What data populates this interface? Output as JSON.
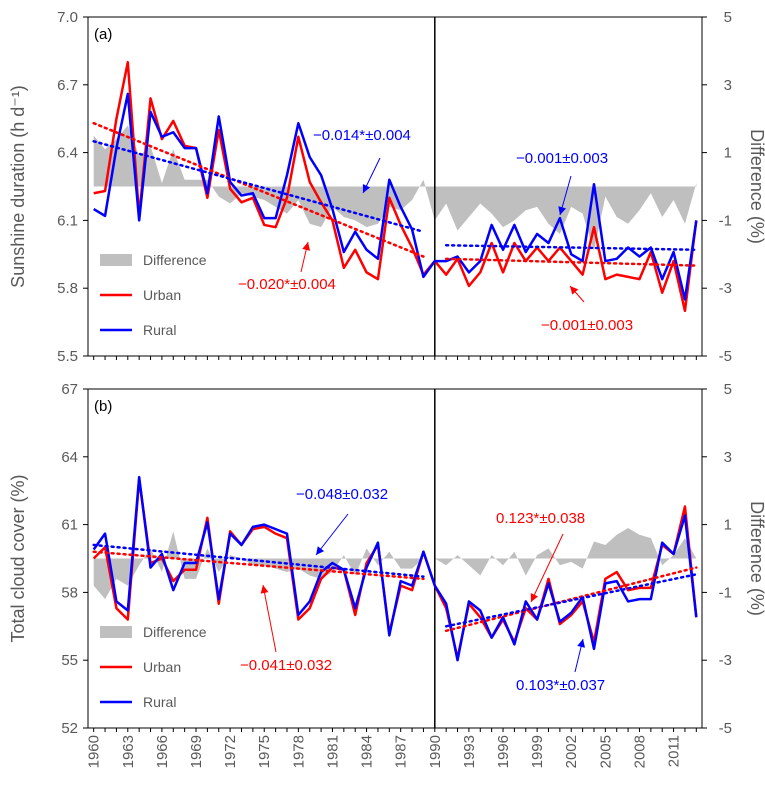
{
  "colors": {
    "urban": "#ff0000",
    "rural": "#0000ff",
    "difference": "#bfbfbf",
    "axis": "#595959"
  },
  "x_tick_labels": [
    "1960",
    "1963",
    "1966",
    "1969",
    "1972",
    "1975",
    "1978",
    "1981",
    "1984",
    "1987",
    "1990",
    "1993",
    "1996",
    "1999",
    "2002",
    "2005",
    "2008",
    "2011"
  ],
  "chart_data": [
    {
      "type": "line",
      "panel_label": "(a)",
      "ylabel": "Sunshine duration (h d⁻¹)",
      "ylabel_right": "Difference (%)",
      "ylim": [
        5.5,
        7.0
      ],
      "ylim_right": [
        -5,
        5
      ],
      "yticks": [
        "5.5",
        "5.8",
        "6.1",
        "6.4",
        "6.7",
        "7.0"
      ],
      "yticks_right": [
        "-5",
        "-3",
        "-1",
        "1",
        "3",
        "5"
      ],
      "breakpoint_year": 1990,
      "legend": {
        "position": "bottom-left",
        "entries": [
          "Difference",
          "Urban",
          "Rural"
        ]
      },
      "x": [
        1960,
        1961,
        1962,
        1963,
        1964,
        1965,
        1966,
        1967,
        1968,
        1969,
        1970,
        1971,
        1972,
        1973,
        1974,
        1975,
        1976,
        1977,
        1978,
        1979,
        1980,
        1981,
        1982,
        1983,
        1984,
        1985,
        1986,
        1987,
        1988,
        1989,
        1990,
        1991,
        1992,
        1993,
        1994,
        1995,
        1996,
        1997,
        1998,
        1999,
        2000,
        2001,
        2002,
        2003,
        2004,
        2005,
        2006,
        2007,
        2008,
        2009,
        2010,
        2011,
        2012,
        2013
      ],
      "series": [
        {
          "name": "Urban",
          "values": [
            6.22,
            6.23,
            6.55,
            6.8,
            6.12,
            6.64,
            6.46,
            6.54,
            6.43,
            6.42,
            6.2,
            6.5,
            6.24,
            6.18,
            6.2,
            6.08,
            6.07,
            6.2,
            6.47,
            6.27,
            6.18,
            6.1,
            5.89,
            5.97,
            5.87,
            5.84,
            6.2,
            6.08,
            5.98,
            5.86,
            5.92,
            5.86,
            5.93,
            5.81,
            5.87,
            6.0,
            5.87,
            6.0,
            5.92,
            5.98,
            5.92,
            5.98,
            5.92,
            5.86,
            6.07,
            5.84,
            5.86,
            5.85,
            5.84,
            5.96,
            5.78,
            5.92,
            5.7,
            6.1
          ]
        },
        {
          "name": "Rural",
          "values": [
            6.15,
            6.12,
            6.42,
            6.66,
            6.1,
            6.58,
            6.47,
            6.49,
            6.42,
            6.42,
            6.22,
            6.56,
            6.27,
            6.21,
            6.22,
            6.11,
            6.11,
            6.3,
            6.53,
            6.38,
            6.3,
            6.15,
            5.96,
            6.05,
            5.97,
            5.93,
            6.28,
            6.16,
            6.06,
            5.85,
            5.92,
            5.92,
            5.94,
            5.87,
            5.92,
            6.08,
            5.97,
            6.08,
            5.96,
            6.04,
            6.0,
            6.11,
            5.95,
            5.92,
            6.26,
            5.92,
            5.93,
            5.98,
            5.94,
            5.98,
            5.84,
            5.96,
            5.75,
            6.1
          ]
        },
        {
          "name": "Difference",
          "values": [
            1.5,
            1.1,
            1.4,
            1.8,
            0.9,
            1.2,
            0.1,
            1.1,
            0.2,
            0.2,
            0.2,
            -0.3,
            -0.5,
            -0.2,
            -0.3,
            -0.4,
            -0.6,
            -0.8,
            -0.4,
            -1.1,
            -1.2,
            -0.6,
            -0.9,
            -1.0,
            -1.2,
            -1.1,
            -0.6,
            -0.7,
            -0.4,
            0.2,
            -1.0,
            -0.5,
            -1.3,
            -0.9,
            -0.5,
            -0.8,
            -1.2,
            -1.0,
            -0.7,
            -0.6,
            -1.1,
            -1.4,
            -0.6,
            -0.8,
            -1.9,
            -0.3,
            -0.9,
            -1.1,
            -0.7,
            -0.2,
            -0.9,
            -0.4,
            -1.1,
            0.1
          ]
        }
      ],
      "trends": [
        {
          "name": "Urban",
          "segment": "1960-1989",
          "label": "−0.020*±0.004",
          "start": [
            1960,
            6.53
          ],
          "end": [
            1989,
            5.94
          ]
        },
        {
          "name": "Rural",
          "segment": "1960-1989",
          "label": "−0.014*±0.004",
          "start": [
            1960,
            6.45
          ],
          "end": [
            1989,
            6.05
          ]
        },
        {
          "name": "Urban",
          "segment": "1991-2013",
          "label": "−0.001±0.003",
          "start": [
            1991,
            5.93
          ],
          "end": [
            2013,
            5.9
          ]
        },
        {
          "name": "Rural",
          "segment": "1991-2013",
          "label": "−0.001±0.003",
          "start": [
            1991,
            5.99
          ],
          "end": [
            2013,
            5.97
          ]
        }
      ]
    },
    {
      "type": "line",
      "panel_label": "(b)",
      "ylabel": "Total cloud cover (%)",
      "ylabel_right": "Difference (%)",
      "ylim": [
        52,
        67
      ],
      "ylim_right": [
        -5,
        5
      ],
      "yticks": [
        "52",
        "55",
        "58",
        "61",
        "64",
        "67"
      ],
      "yticks_right": [
        "-5",
        "-3",
        "-1",
        "1",
        "3",
        "5"
      ],
      "breakpoint_year": 1990,
      "legend": {
        "position": "bottom-left",
        "entries": [
          "Difference",
          "Urban",
          "Rural"
        ]
      },
      "x": [
        1960,
        1961,
        1962,
        1963,
        1964,
        1965,
        1966,
        1967,
        1968,
        1969,
        1970,
        1971,
        1972,
        1973,
        1974,
        1975,
        1976,
        1977,
        1978,
        1979,
        1980,
        1981,
        1982,
        1983,
        1984,
        1985,
        1986,
        1987,
        1988,
        1989,
        1990,
        1991,
        1992,
        1993,
        1994,
        1995,
        1996,
        1997,
        1998,
        1999,
        2000,
        2001,
        2002,
        2003,
        2004,
        2005,
        2006,
        2007,
        2008,
        2009,
        2010,
        2011,
        2012,
        2013
      ],
      "series": [
        {
          "name": "Urban",
          "values": [
            59.5,
            60.0,
            57.3,
            56.8,
            63.0,
            59.3,
            59.5,
            58.5,
            59.0,
            59.0,
            61.3,
            57.5,
            60.7,
            60.1,
            60.8,
            60.9,
            60.6,
            60.4,
            56.8,
            57.3,
            58.6,
            59.1,
            59.0,
            57.0,
            59.3,
            60.1,
            56.2,
            58.3,
            58.1,
            59.8,
            58.3,
            57.3,
            55.1,
            57.5,
            56.9,
            56.0,
            56.8,
            55.8,
            57.3,
            56.8,
            58.6,
            56.6,
            57.0,
            57.6,
            55.8,
            58.6,
            58.9,
            58.1,
            58.2,
            58.2,
            60.1,
            59.7,
            61.8,
            56.9
          ]
        },
        {
          "name": "Rural",
          "values": [
            59.9,
            60.6,
            57.6,
            57.2,
            63.1,
            59.1,
            59.7,
            58.1,
            59.3,
            59.3,
            61.1,
            57.7,
            60.6,
            60.1,
            60.9,
            61.0,
            60.8,
            60.6,
            57.0,
            57.6,
            58.9,
            59.3,
            59.0,
            57.3,
            59.1,
            60.2,
            56.1,
            58.5,
            58.3,
            59.8,
            58.3,
            57.5,
            55.0,
            57.6,
            57.2,
            56.0,
            56.9,
            55.7,
            57.6,
            56.8,
            58.4,
            56.7,
            57.1,
            57.8,
            55.5,
            58.4,
            58.5,
            57.6,
            57.7,
            57.7,
            60.2,
            59.7,
            61.4,
            56.9
          ]
        },
        {
          "name": "Difference",
          "values": [
            -0.8,
            -1.2,
            -0.6,
            -0.8,
            -0.2,
            0.3,
            -0.4,
            0.8,
            -0.6,
            -0.6,
            0.3,
            -0.4,
            0.1,
            0.0,
            -0.2,
            -0.2,
            -0.3,
            -0.4,
            -0.3,
            -0.5,
            -0.6,
            -0.4,
            0.1,
            -0.5,
            0.3,
            -0.2,
            0.2,
            -0.3,
            -0.3,
            0.0,
            0.0,
            -0.2,
            0.1,
            -0.2,
            -0.5,
            0.1,
            -0.2,
            0.2,
            -0.5,
            0.1,
            0.3,
            -0.2,
            -0.1,
            -0.3,
            0.5,
            0.4,
            0.7,
            0.9,
            0.7,
            0.6,
            -0.2,
            0.1,
            0.6,
            0.0
          ]
        }
      ],
      "trends": [
        {
          "name": "Urban",
          "segment": "1960-1989",
          "label": "−0.041±0.032",
          "start": [
            1960,
            59.8
          ],
          "end": [
            1989,
            58.6
          ]
        },
        {
          "name": "Rural",
          "segment": "1960-1989",
          "label": "−0.048±0.032",
          "start": [
            1960,
            60.1
          ],
          "end": [
            1989,
            58.7
          ]
        },
        {
          "name": "Urban",
          "segment": "1991-2013",
          "label": "0.123*±0.038",
          "start": [
            1991,
            56.3
          ],
          "end": [
            2013,
            59.1
          ]
        },
        {
          "name": "Rural",
          "segment": "1991-2013",
          "label": "0.103*±0.037",
          "start": [
            1991,
            56.5
          ],
          "end": [
            2013,
            58.8
          ]
        }
      ]
    }
  ]
}
